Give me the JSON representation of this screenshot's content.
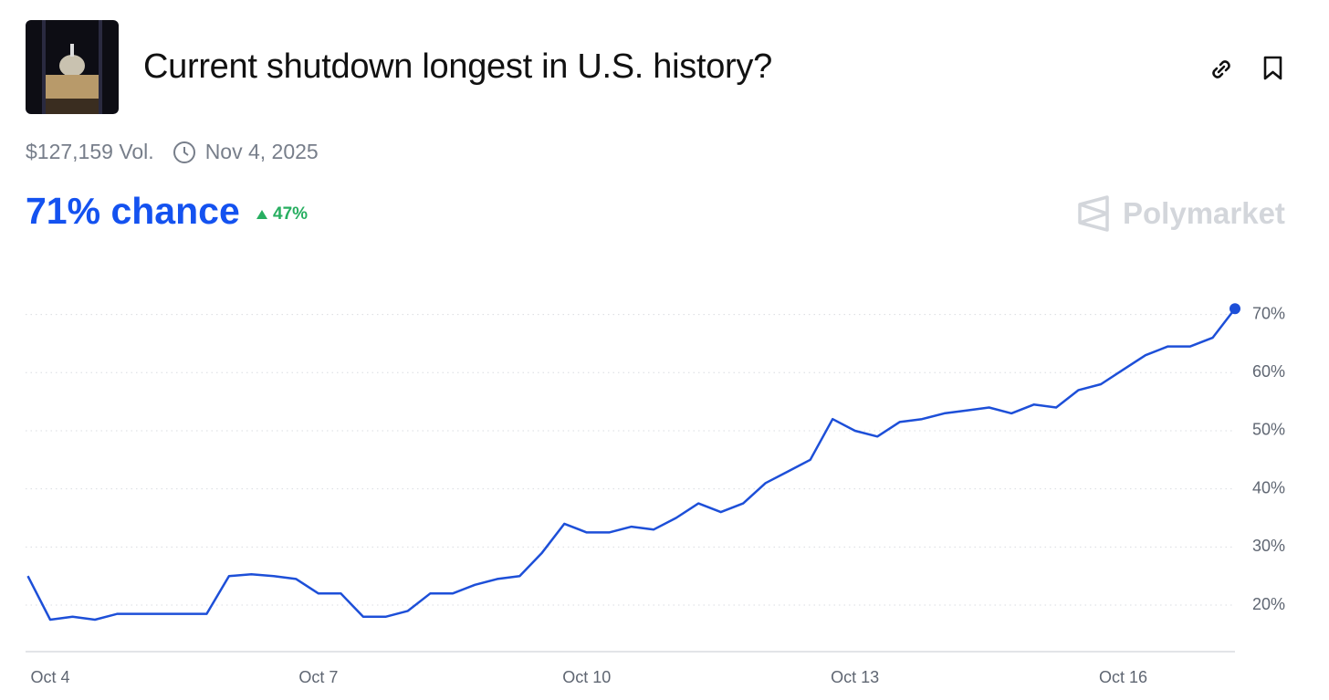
{
  "header": {
    "title": "Current shutdown longest in U.S. history?",
    "volume": "$127,159 Vol.",
    "end_date": "Nov 4, 2025",
    "chance": "71% chance",
    "change": "47%",
    "brand": "Polymarket"
  },
  "chart_data": {
    "type": "line",
    "color": "#1d4fd8",
    "categories": [
      null,
      "Oct 4",
      null,
      null,
      null,
      null,
      null,
      null,
      null,
      null,
      null,
      null,
      null,
      "Oct 7",
      null,
      null,
      null,
      null,
      null,
      null,
      null,
      null,
      null,
      null,
      null,
      "Oct 10",
      null,
      null,
      null,
      null,
      null,
      null,
      null,
      null,
      null,
      null,
      null,
      "Oct 13",
      null,
      null,
      null,
      null,
      null,
      null,
      null,
      null,
      null,
      null,
      null,
      "Oct 16",
      null,
      null,
      null,
      null,
      null
    ],
    "values": [
      25,
      17.5,
      18,
      17.5,
      18.5,
      18.5,
      18.5,
      18.5,
      18.5,
      25,
      25.3,
      25,
      24.5,
      22,
      22,
      18,
      18,
      19,
      22,
      22,
      23.5,
      24.5,
      25,
      29,
      34,
      32.5,
      32.5,
      33.5,
      33,
      35,
      37.5,
      36,
      37.5,
      41,
      43,
      45,
      52,
      50,
      49,
      51.5,
      52,
      53,
      53.5,
      54,
      53,
      54.5,
      54,
      57,
      58,
      60.5,
      63,
      64.5,
      64.5,
      66,
      71
    ],
    "ylim": [
      12,
      77
    ],
    "yticks": [
      {
        "value": 20,
        "label": "20%"
      },
      {
        "value": 30,
        "label": "30%"
      },
      {
        "value": 40,
        "label": "40%"
      },
      {
        "value": 50,
        "label": "50%"
      },
      {
        "value": 60,
        "label": "60%"
      },
      {
        "value": 70,
        "label": "70%"
      }
    ],
    "grid": true
  }
}
